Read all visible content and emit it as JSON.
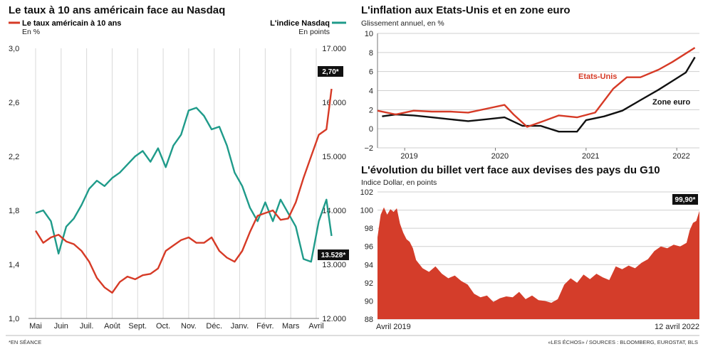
{
  "footnotes": {
    "left": "*EN SÉANCE",
    "right": "«LES ÉCHOS» / SOURCES : BLOOMBERG, EUROSTAT, BLS"
  },
  "colors": {
    "red": "#d63a26",
    "teal": "#1f9b8a",
    "black": "#111111",
    "area": "#d43d2a"
  },
  "chart_data": [
    {
      "type": "line",
      "title": "Le taux à 10 ans américain face au Nasdaq",
      "x_ticks": [
        "Mai",
        "Juin",
        "Juil.",
        "Août",
        "Sept.",
        "Oct.",
        "Nov.",
        "Déc.",
        "Janv.",
        "Févr.",
        "Mars",
        "Avril"
      ],
      "left_axis": {
        "label": "Le taux américain à 10 ans",
        "unit": "En %",
        "range": [
          1.0,
          3.0
        ],
        "ticks": [
          "3,0",
          "2,6",
          "2,2",
          "1,8",
          "1,4",
          "1,0"
        ]
      },
      "right_axis": {
        "label": "L'indice Nasdaq",
        "unit": "En points",
        "range": [
          12000,
          17000
        ],
        "ticks": [
          "17.000",
          "16.000",
          "15.000",
          "14.000",
          "13.000",
          "12.000"
        ]
      },
      "series": [
        {
          "name": "Le taux américain à 10 ans",
          "axis": "left",
          "end_label": "2,70*",
          "x": [
            0,
            0.3,
            0.6,
            0.9,
            1.2,
            1.5,
            1.8,
            2.1,
            2.4,
            2.7,
            3.0,
            3.3,
            3.6,
            3.9,
            4.2,
            4.5,
            4.8,
            5.1,
            5.4,
            5.7,
            6.0,
            6.3,
            6.6,
            6.9,
            7.2,
            7.5,
            7.8,
            8.1,
            8.4,
            8.7,
            9.0,
            9.3,
            9.6,
            9.9,
            10.2,
            10.5,
            10.8,
            11.1,
            11.4,
            11.6
          ],
          "values": [
            1.65,
            1.56,
            1.6,
            1.62,
            1.57,
            1.55,
            1.5,
            1.42,
            1.3,
            1.23,
            1.19,
            1.27,
            1.31,
            1.29,
            1.32,
            1.33,
            1.37,
            1.5,
            1.54,
            1.58,
            1.6,
            1.56,
            1.56,
            1.6,
            1.5,
            1.45,
            1.42,
            1.5,
            1.64,
            1.76,
            1.78,
            1.8,
            1.73,
            1.74,
            1.86,
            2.04,
            2.2,
            2.36,
            2.4,
            2.7
          ]
        },
        {
          "name": "L'indice Nasdaq",
          "axis": "right",
          "end_label": "13.528*",
          "x": [
            0,
            0.3,
            0.6,
            0.9,
            1.2,
            1.5,
            1.8,
            2.1,
            2.4,
            2.7,
            3.0,
            3.3,
            3.6,
            3.9,
            4.2,
            4.5,
            4.8,
            5.1,
            5.4,
            5.7,
            6.0,
            6.3,
            6.6,
            6.9,
            7.2,
            7.5,
            7.8,
            8.1,
            8.4,
            8.7,
            9.0,
            9.3,
            9.6,
            9.9,
            10.2,
            10.5,
            10.8,
            11.1,
            11.4,
            11.6
          ],
          "values": [
            13950,
            14000,
            13800,
            13200,
            13700,
            13850,
            14100,
            14400,
            14550,
            14450,
            14600,
            14700,
            14850,
            15000,
            15100,
            14900,
            15150,
            14800,
            15200,
            15400,
            15850,
            15900,
            15750,
            15500,
            15550,
            15200,
            14700,
            14450,
            14050,
            13800,
            14150,
            13800,
            14200,
            13950,
            13700,
            13100,
            13050,
            13800,
            14200,
            13528
          ]
        }
      ]
    },
    {
      "type": "line",
      "title": "L'inflation aux Etats-Unis et en zone euro",
      "subtitle": "Glissement annuel, en %",
      "x_ticks": [
        "2019",
        "2020",
        "2021",
        "2022"
      ],
      "y_ticks": [
        "10",
        "8",
        "6",
        "4",
        "2",
        "0",
        "−2"
      ],
      "ylim": [
        -2,
        10
      ],
      "series": [
        {
          "name": "Etats-Unis",
          "x": [
            2018.7,
            2018.9,
            2019.1,
            2019.3,
            2019.5,
            2019.7,
            2019.9,
            2020.1,
            2020.2,
            2020.35,
            2020.5,
            2020.7,
            2020.9,
            2021.1,
            2021.3,
            2021.45,
            2021.6,
            2021.8,
            2021.95,
            2022.1,
            2022.2
          ],
          "values": [
            1.9,
            1.5,
            1.9,
            1.8,
            1.8,
            1.7,
            2.1,
            2.5,
            1.5,
            0.2,
            0.7,
            1.4,
            1.2,
            1.7,
            4.2,
            5.4,
            5.4,
            6.2,
            7.0,
            7.9,
            8.5
          ]
        },
        {
          "name": "Zone euro",
          "x": [
            2018.75,
            2018.9,
            2019.1,
            2019.3,
            2019.5,
            2019.7,
            2019.9,
            2020.1,
            2020.3,
            2020.5,
            2020.7,
            2020.9,
            2021.0,
            2021.2,
            2021.4,
            2021.6,
            2021.8,
            2021.95,
            2022.1,
            2022.2
          ],
          "values": [
            1.3,
            1.5,
            1.4,
            1.2,
            1.0,
            0.8,
            1.0,
            1.2,
            0.3,
            0.3,
            -0.3,
            -0.3,
            0.9,
            1.3,
            1.9,
            3.0,
            4.1,
            5.0,
            5.9,
            7.5
          ]
        }
      ]
    },
    {
      "type": "area",
      "title": "L'évolution du billet vert face aux devises des pays du G10",
      "subtitle": "Indice Dollar, en points",
      "x_ticks": [
        "Avril 2019",
        "12 avril 2022"
      ],
      "y_ticks": [
        "102",
        "100",
        "98",
        "96",
        "94",
        "92",
        "90",
        "88"
      ],
      "ylim": [
        88,
        102
      ],
      "end_label": "99,90*",
      "series": [
        {
          "name": "Indice Dollar",
          "x": [
            0,
            0.01,
            0.02,
            0.03,
            0.04,
            0.05,
            0.06,
            0.07,
            0.08,
            0.09,
            0.1,
            0.11,
            0.12,
            0.14,
            0.16,
            0.18,
            0.2,
            0.22,
            0.24,
            0.26,
            0.28,
            0.3,
            0.32,
            0.34,
            0.36,
            0.38,
            0.4,
            0.42,
            0.44,
            0.46,
            0.48,
            0.5,
            0.52,
            0.54,
            0.56,
            0.58,
            0.6,
            0.62,
            0.64,
            0.66,
            0.68,
            0.7,
            0.72,
            0.74,
            0.76,
            0.78,
            0.8,
            0.82,
            0.84,
            0.86,
            0.88,
            0.9,
            0.92,
            0.94,
            0.96,
            0.97,
            0.98,
            0.99,
            1.0
          ],
          "values": [
            97.0,
            99.5,
            100.3,
            99.5,
            100.1,
            99.8,
            100.2,
            98.5,
            97.5,
            96.8,
            96.5,
            95.8,
            94.5,
            93.6,
            93.2,
            93.8,
            93.0,
            92.5,
            92.8,
            92.2,
            91.8,
            90.8,
            90.4,
            90.6,
            89.9,
            90.3,
            90.5,
            90.4,
            91.0,
            90.2,
            90.6,
            90.1,
            90.0,
            89.8,
            90.2,
            91.8,
            92.5,
            92.0,
            92.9,
            92.4,
            93.0,
            92.6,
            92.3,
            93.8,
            93.5,
            93.9,
            93.6,
            94.2,
            94.6,
            95.5,
            96.0,
            95.8,
            96.2,
            96.0,
            96.4,
            97.8,
            98.6,
            98.8,
            99.9
          ]
        }
      ]
    }
  ]
}
